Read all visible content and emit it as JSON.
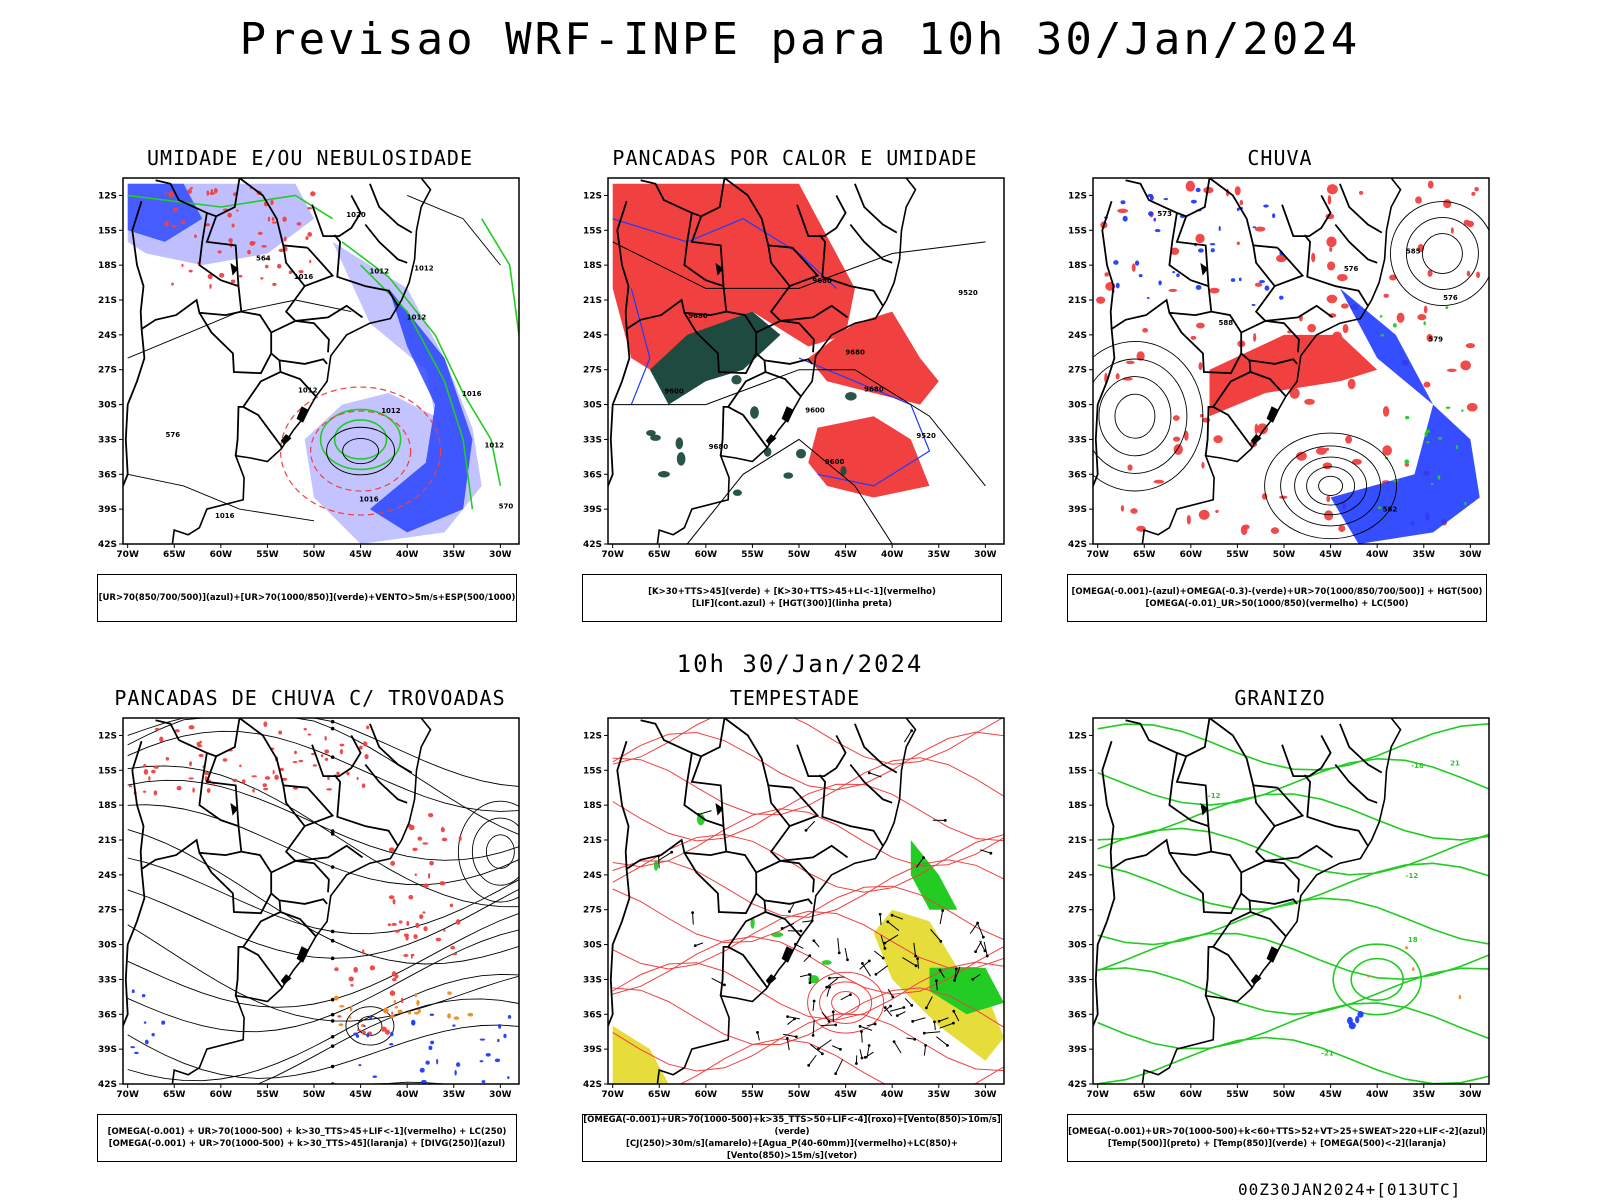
{
  "header": {
    "title": "Previsao WRF-INPE  para 10h 30/Jan/2024",
    "mid_title": "10h 30/Jan/2024",
    "footer": "00Z30JAN2024+[013UTC]"
  },
  "axes": {
    "lat_labels": [
      "12S",
      "15S",
      "18S",
      "21S",
      "24S",
      "27S",
      "30S",
      "33S",
      "36S",
      "39S",
      "42S"
    ],
    "lon_labels": [
      "70W",
      "65W",
      "60W",
      "55W",
      "50W",
      "45W",
      "40W",
      "35W",
      "30W"
    ]
  },
  "colors": {
    "blue": "#1f3bff",
    "light_blue": "#b8b8ff",
    "green": "#22cc22",
    "red": "#f04040",
    "dark_green": "#1f4a40",
    "yellow": "#e6dc3a",
    "orange": "#f08a20"
  },
  "panels": [
    {
      "title": "UMIDADE E/OU NEBULOSIDADE",
      "legend": [
        "[UR>70(850/700/500)](azul)+[UR>70(1000/850)](verde)+VENTO>5m/s+ESP(500/1000)"
      ],
      "contour_labels": [
        "1016",
        "1016",
        "1012",
        "1012",
        "1012",
        "1012",
        "1020",
        "1016",
        "570",
        "576",
        "564",
        "1012",
        "1012",
        "1016"
      ]
    },
    {
      "title": "PANCADAS POR CALOR E UMIDADE",
      "legend": [
        "[K>30+TTS>45](verde) + [K>30+TTS>45+LI<-1](vermelho)",
        "[LIF](cont.azul) + [HGT(300)](linha preta)"
      ],
      "contour_labels": [
        "9680",
        "9680",
        "9680",
        "9680",
        "9600",
        "9600",
        "9520",
        "9600",
        "9520",
        "9680"
      ]
    },
    {
      "title": "CHUVA",
      "legend": [
        "[OMEGA(-0.001)-(azul)+OMEGA(-0.3)-(verde)+UR>70(1000/850/700/500)] + HGT(500)",
        "[OMEGA(-0.01)_UR>50(1000/850)(vermelho) + LC(500)"
      ],
      "contour_labels": [
        "588",
        "585",
        "576",
        "576",
        "573",
        "582",
        "579"
      ]
    },
    {
      "title": "PANCADAS DE CHUVA C/ TROVOADAS",
      "legend": [
        "[OMEGA(-0.001) + UR>70(1000-500) + k>30_TTS>45+LIF<-1](vermelho) + LC(250)",
        "[OMEGA(-0.001) + UR>70(1000-500) + k>30_TTS>45](laranja) + [DIVG(250)](azul)"
      ],
      "contour_labels": []
    },
    {
      "title": "TEMPESTADE",
      "legend": [
        "[OMEGA(-0.001)+UR>70(1000-500)+k>35_TTS>50+LIF<-4](roxo)+[Vento(850)>10m/s](verde)",
        "[CJ(250)>30m/s](amarelo)+[Agua_P(40-60mm)](vermelho)+LC(850)+[Vento(850)>15m/s](vetor)"
      ],
      "contour_labels": []
    },
    {
      "title": "GRANIZO",
      "legend": [
        "[OMEGA(-0.001)+UR>70(1000-500)+k<60+TTS>52+VT>25+SWEAT>220+LIF<-2](azul)",
        "[Temp(500)](preto) + [Temp(850)](verde) + [OMEGA(500)<-2](laranja)"
      ],
      "contour_labels": [
        "-12",
        "-21",
        "-18",
        "-12",
        "21",
        "18"
      ]
    }
  ]
}
